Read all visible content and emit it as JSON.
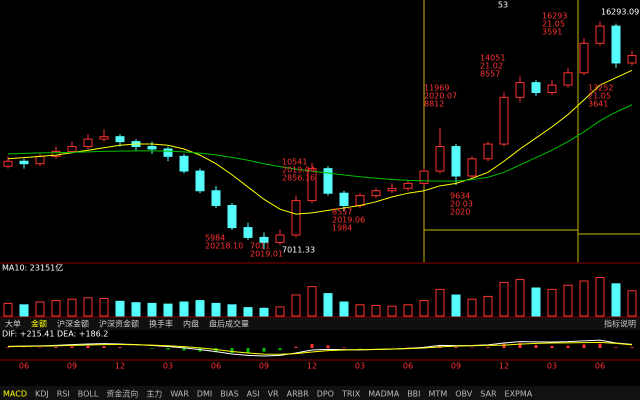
{
  "chart_data": {
    "type": "candlestick",
    "counter": "53",
    "categories": [
      null,
      "06",
      null,
      null,
      "09",
      null,
      null,
      "12",
      null,
      null,
      "03",
      null,
      null,
      "06",
      null,
      null,
      "09",
      null,
      null,
      "12",
      null,
      null,
      "03",
      null,
      null,
      "06",
      null,
      null,
      "09",
      null,
      null,
      "12",
      null,
      null,
      "03",
      null,
      null,
      "06",
      null,
      null
    ],
    "open": [
      10400,
      10600,
      10500,
      10800,
      11000,
      11200,
      11500,
      11600,
      11400,
      11200,
      11100,
      10800,
      10200,
      9400,
      8800,
      7900,
      7500,
      7300,
      7600,
      9000,
      10300,
      9300,
      8800,
      9200,
      9400,
      9500,
      9700,
      10200,
      11200,
      10000,
      10700,
      11300,
      13200,
      13800,
      13400,
      13700,
      14200,
      15400,
      16100,
      14600
    ],
    "high": [
      10800,
      10700,
      10900,
      11200,
      11400,
      11700,
      11900,
      11700,
      11500,
      11400,
      11200,
      10900,
      10300,
      9600,
      8900,
      8100,
      7700,
      7800,
      9200,
      10541,
      10400,
      9400,
      9300,
      9500,
      9700,
      9800,
      10300,
      11969,
      11300,
      10800,
      11400,
      13400,
      14051,
      13900,
      13900,
      14400,
      15600,
      16293.09,
      16200,
      15100
    ],
    "low": [
      10300,
      10300,
      10400,
      10700,
      10900,
      11100,
      11400,
      11200,
      11000,
      10900,
      10600,
      10100,
      9300,
      8700,
      7800,
      7400,
      7011.33,
      7200,
      7500,
      8900,
      9200,
      8557,
      8700,
      9100,
      9300,
      9400,
      9600,
      10100,
      9634,
      9900,
      10600,
      11200,
      13000,
      13252,
      13300,
      13600,
      14100,
      15300,
      14400,
      14500
    ],
    "close": [
      10600,
      10500,
      10800,
      11000,
      11200,
      11500,
      11600,
      11400,
      11200,
      11100,
      10800,
      10200,
      9400,
      8800,
      7900,
      7500,
      7300,
      7600,
      9000,
      10300,
      9300,
      8800,
      9200,
      9400,
      9500,
      9700,
      10200,
      11200,
      10000,
      10700,
      11300,
      13200,
      13800,
      13400,
      13700,
      14200,
      15400,
      16100,
      14600,
      14900
    ],
    "up_color": "#ff3232",
    "down_color": "#54fcfc",
    "ylim": [
      6500,
      17000
    ],
    "ma": [
      {
        "color": "#ffff00",
        "values": [
          10700,
          10750,
          10800,
          10850,
          10950,
          11050,
          11150,
          11250,
          11300,
          11300,
          11250,
          11100,
          10850,
          10500,
          10050,
          9550,
          9050,
          8650,
          8450,
          8500,
          8600,
          8700,
          8800,
          8950,
          9150,
          9300,
          9400,
          9600,
          9700,
          9900,
          10150,
          10600,
          11100,
          11550,
          12000,
          12500,
          13100,
          13700,
          14000,
          14300
        ]
      },
      {
        "color": "#00c000",
        "values": [
          10900,
          10920,
          10940,
          10950,
          10960,
          10980,
          11000,
          11010,
          11020,
          11020,
          11010,
          10980,
          10930,
          10860,
          10760,
          10640,
          10500,
          10380,
          10280,
          10200,
          10120,
          10040,
          9970,
          9910,
          9860,
          9820,
          9800,
          9790,
          9790,
          9850,
          9950,
          10150,
          10450,
          10750,
          11050,
          11400,
          11800,
          12250,
          12600,
          12900
        ]
      }
    ],
    "annotations": [
      {
        "lines": [
          "5984",
          "20218.10"
        ],
        "color": "#ff3232"
      },
      {
        "lines": [
          "7011",
          "2019.01"
        ],
        "color": "#ff3232"
      },
      {
        "lines": [
          "10541",
          "2019.04",
          "2856.16"
        ],
        "color": "#ff3232"
      },
      {
        "lines": [
          "8557",
          "2019.06",
          "1984"
        ],
        "color": "#ff3232"
      },
      {
        "lines": [
          "11969",
          "2020.07",
          "8812"
        ],
        "color": "#ff3232"
      },
      {
        "lines": [
          "9634",
          "20.03",
          "2020"
        ],
        "color": "#ff3232"
      },
      {
        "lines": [
          "14051",
          "21.02",
          "8557"
        ],
        "color": "#ff3232"
      },
      {
        "lines": [
          "16293",
          "21.05",
          "3591"
        ],
        "color": "#ff3232"
      },
      {
        "lines": [
          "13252",
          "21.05",
          "3641"
        ],
        "color": "#ff3232"
      },
      {
        "lines": [
          "16293.09"
        ],
        "color": "#ffffff"
      },
      {
        "lines": [
          "7011.33"
        ],
        "color": "#ffffff"
      }
    ],
    "volume": {
      "label": "MA10: 23151亿",
      "ylim": [
        0,
        60000
      ],
      "values": [
        18000,
        16000,
        20000,
        22000,
        24000,
        26000,
        25000,
        21000,
        19000,
        18000,
        17000,
        20000,
        22000,
        18000,
        16000,
        12000,
        11000,
        13000,
        30000,
        42000,
        32000,
        20000,
        16000,
        15000,
        14000,
        16000,
        22000,
        38000,
        30000,
        24000,
        28000,
        48000,
        52000,
        40000,
        38000,
        44000,
        50000,
        55000,
        46000,
        36000
      ]
    },
    "tabs": [
      "大单",
      "金额",
      "沪深金额",
      "沪深资金额",
      "换手率",
      "内盘",
      "盘后成交量"
    ],
    "help": "指标说明",
    "macd": {
      "label": "DIF: +215.41  DEA: +186.2",
      "ylim": [
        -600,
        600
      ],
      "hist": [
        40,
        20,
        30,
        60,
        90,
        120,
        110,
        60,
        10,
        -40,
        -90,
        -150,
        -220,
        -260,
        -300,
        -280,
        -220,
        -130,
        80,
        240,
        160,
        40,
        -20,
        -10,
        10,
        30,
        80,
        180,
        60,
        30,
        60,
        260,
        300,
        180,
        120,
        140,
        220,
        260,
        40,
        58
      ],
      "dif": {
        "color": "#ffffff",
        "values": [
          100,
          110,
          130,
          160,
          200,
          240,
          260,
          240,
          200,
          150,
          90,
          10,
          -100,
          -220,
          -360,
          -440,
          -480,
          -440,
          -300,
          -120,
          -80,
          -100,
          -110,
          -90,
          -60,
          -20,
          40,
          160,
          140,
          150,
          190,
          300,
          380,
          370,
          360,
          380,
          430,
          470,
          300,
          215.41
        ]
      },
      "dea": {
        "color": "#ffff00",
        "values": [
          80,
          100,
          115,
          130,
          155,
          180,
          205,
          210,
          195,
          170,
          135,
          85,
          10,
          -90,
          -210,
          -300,
          -370,
          -375,
          -340,
          -240,
          -160,
          -120,
          -100,
          -85,
          -65,
          -35,
          0,
          70,
          110,
          135,
          160,
          170,
          230,
          280,
          300,
          310,
          320,
          340,
          280,
          186.2
        ]
      }
    },
    "bottom_tabs": [
      "MACD",
      "KDJ",
      "RSI",
      "BOLL",
      "资金流向",
      "主力",
      "WAR",
      "DMI",
      "BIAS",
      "ASI",
      "VR",
      "ARBR",
      "DPO",
      "TRIX",
      "MADMA",
      "BBI",
      "MTM",
      "OBV",
      "SAR",
      "EXPMA"
    ]
  }
}
